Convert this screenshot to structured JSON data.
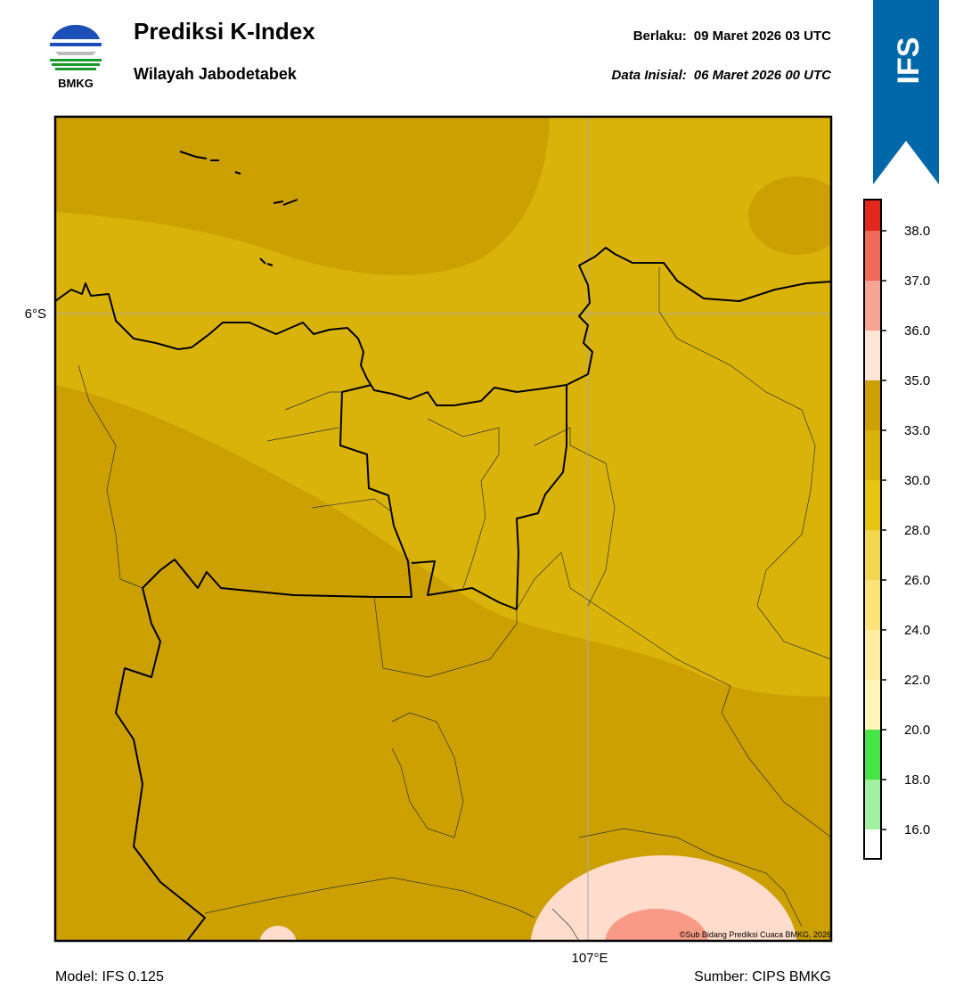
{
  "header": {
    "logo_text": "BMKG",
    "title": "Prediksi K-Index",
    "subtitle": "Wilayah Jabodetabek",
    "valid_label": "Berlaku:",
    "valid_time": "09 Maret 2026 03 UTC",
    "init_label": "Data Inisial:",
    "init_time": "06 Maret 2026 00 UTC",
    "badge": "IFS"
  },
  "map": {
    "lat_label": "6°S",
    "lon_label": "107°E",
    "copyright": "©Sub Bidang Prediksi Cuaca BMKG, 2026"
  },
  "colorbar": {
    "colors": [
      "#ffffff",
      "#a0f0a0",
      "#44e544",
      "#fff5b8",
      "#ffeea0",
      "#fbe37a",
      "#f2d650",
      "#e8c414",
      "#dab30a",
      "#cca000",
      "#ffe4d8",
      "#f8a494",
      "#f06a58",
      "#e2281c"
    ],
    "ticks": [
      {
        "value": 16,
        "label": "16.0"
      },
      {
        "value": 18,
        "label": "18.0"
      },
      {
        "value": 20,
        "label": "20.0"
      },
      {
        "value": 22,
        "label": "22.0"
      },
      {
        "value": 24,
        "label": "24.0"
      },
      {
        "value": 26,
        "label": "26.0"
      },
      {
        "value": 28,
        "label": "28.0"
      },
      {
        "value": 30,
        "label": "30.0"
      },
      {
        "value": 33,
        "label": "33.0"
      },
      {
        "value": 35,
        "label": "35.0"
      },
      {
        "value": 36,
        "label": "36.0"
      },
      {
        "value": 37,
        "label": "37.0"
      },
      {
        "value": 38,
        "label": "38.0"
      }
    ]
  },
  "footer": {
    "model": "Model: IFS 0.125",
    "source": "Sumber: CIPS BMKG"
  }
}
